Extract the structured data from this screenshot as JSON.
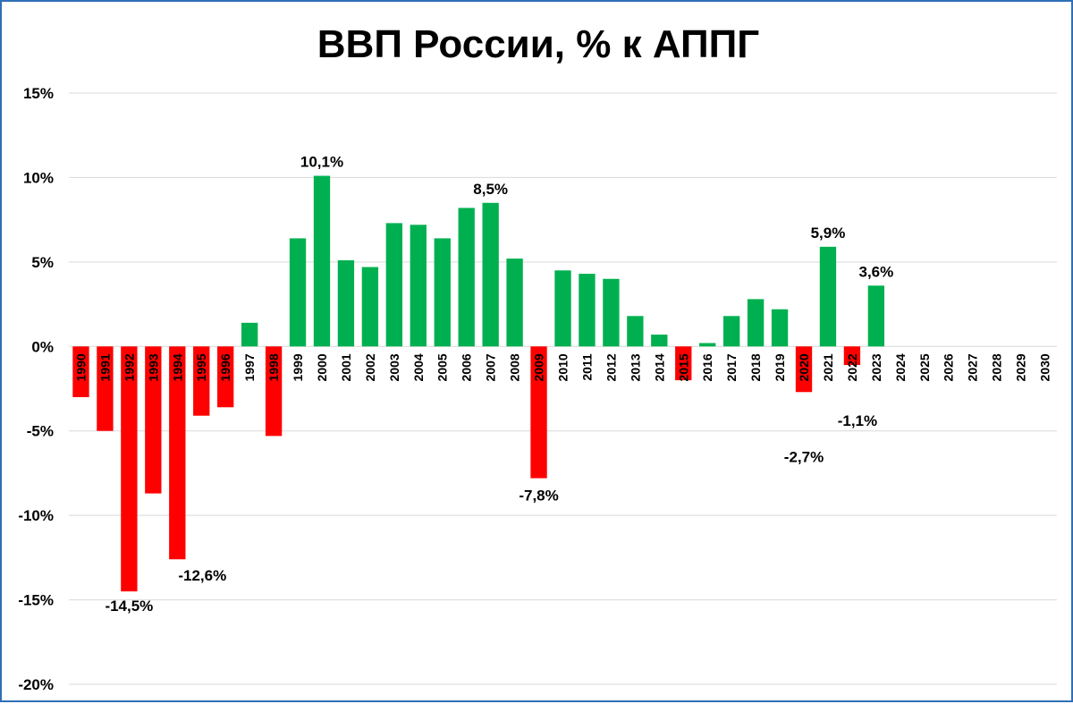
{
  "chart_data": {
    "type": "bar",
    "title": "ВВП России, % к АППГ",
    "xlabel": "",
    "ylabel": "",
    "ylim": [
      -20,
      15
    ],
    "yticks": [
      15,
      10,
      5,
      0,
      -5,
      -10,
      -15,
      -20
    ],
    "ytick_labels": [
      "15%",
      "10%",
      "5%",
      "0%",
      "-5%",
      "-10%",
      "-15%",
      "-20%"
    ],
    "grid": true,
    "legend": "none",
    "colors": {
      "positive": "#00b050",
      "negative": "#ff0000",
      "grid": "#d9d9d9",
      "border": "#2f6fb7"
    },
    "categories": [
      "1990",
      "1991",
      "1992",
      "1993",
      "1994",
      "1995",
      "1996",
      "1997",
      "1998",
      "1999",
      "2000",
      "2001",
      "2002",
      "2003",
      "2004",
      "2005",
      "2006",
      "2007",
      "2008",
      "2009",
      "2010",
      "2011",
      "2012",
      "2013",
      "2014",
      "2015",
      "2016",
      "2017",
      "2018",
      "2019",
      "2020",
      "2021",
      "2022",
      "2023",
      "2024",
      "2025",
      "2026",
      "2027",
      "2028",
      "2029",
      "2030"
    ],
    "values": [
      -3.0,
      -5.0,
      -14.5,
      -8.7,
      -12.6,
      -4.1,
      -3.6,
      1.4,
      -5.3,
      6.4,
      10.1,
      5.1,
      4.7,
      7.3,
      7.2,
      6.4,
      8.2,
      8.5,
      5.2,
      -7.8,
      4.5,
      4.3,
      4.0,
      1.8,
      0.7,
      -2.0,
      0.2,
      1.8,
      2.8,
      2.2,
      -2.7,
      5.9,
      -1.1,
      3.6,
      null,
      null,
      null,
      null,
      null,
      null,
      null
    ],
    "data_labels": [
      {
        "category": "1992",
        "text": "-14,5%"
      },
      {
        "category": "1994",
        "text": "-12,6%"
      },
      {
        "category": "2000",
        "text": "10,1%"
      },
      {
        "category": "2007",
        "text": "8,5%"
      },
      {
        "category": "2009",
        "text": "-7,8%"
      },
      {
        "category": "2020",
        "text": "-2,7%"
      },
      {
        "category": "2021",
        "text": "5,9%"
      },
      {
        "category": "2022",
        "text": "-1,1%"
      },
      {
        "category": "2023",
        "text": "3,6%"
      }
    ]
  }
}
